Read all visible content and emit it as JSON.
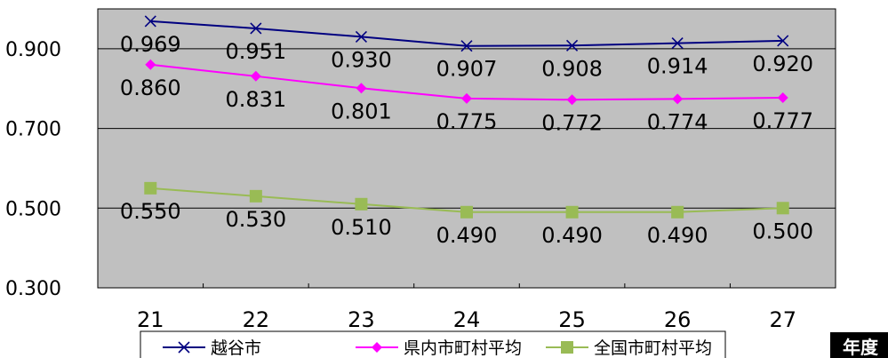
{
  "chart_data": {
    "type": "line",
    "title": "",
    "xlabel": "年度",
    "ylabel": "",
    "categories": [
      "21",
      "22",
      "23",
      "24",
      "25",
      "26",
      "27"
    ],
    "ylim": [
      0.3,
      1.0
    ],
    "yticks": [
      "0.300",
      "0.500",
      "0.700",
      "0.900"
    ],
    "grid": true,
    "legend_position": "bottom",
    "plot_background": "#c0c0c0",
    "series": [
      {
        "name": "越谷市",
        "color": "#000080",
        "marker": "x",
        "values": [
          0.969,
          0.951,
          0.93,
          0.907,
          0.908,
          0.914,
          0.92
        ],
        "labels": [
          "0.969",
          "0.951",
          "0.930",
          "0.907",
          "0.908",
          "0.914",
          "0.920"
        ]
      },
      {
        "name": "県内市町村平均",
        "color": "#ff00ff",
        "marker": "diamond",
        "values": [
          0.86,
          0.831,
          0.801,
          0.775,
          0.772,
          0.774,
          0.777
        ],
        "labels": [
          "0.860",
          "0.831",
          "0.801",
          "0.775",
          "0.772",
          "0.774",
          "0.777"
        ]
      },
      {
        "name": "全国市町村平均",
        "color": "#99bb55",
        "marker": "square",
        "values": [
          0.55,
          0.53,
          0.51,
          0.49,
          0.49,
          0.49,
          0.5
        ],
        "labels": [
          "0.550",
          "0.530",
          "0.510",
          "0.490",
          "0.490",
          "0.490",
          "0.500"
        ]
      }
    ]
  }
}
